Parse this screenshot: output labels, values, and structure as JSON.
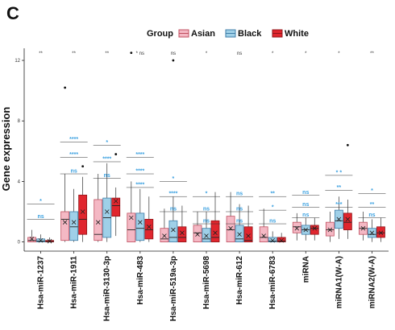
{
  "panel_label": "C",
  "chart_data": {
    "type": "box",
    "legend": {
      "title": "Group",
      "placement": "top",
      "entries": [
        {
          "name": "Asian",
          "color": "#f4b8c4",
          "edge": "#c05060"
        },
        {
          "name": "Black",
          "color": "#9fd0e8",
          "edge": "#3f7ea8"
        },
        {
          "name": "White",
          "color": "#e0262e",
          "edge": "#8f1418"
        }
      ]
    },
    "ylabel": "Gene expression",
    "xlabel": "",
    "ylim": [
      -0.5,
      12.8
    ],
    "yticks": [
      0,
      4,
      8,
      12
    ],
    "categories": [
      "Hsa-miR-1237",
      "Hsa-miR-1911",
      "Hsa-miR-3130-3p",
      "Hsa-miR-483",
      "Hsa-miR-519a-3p",
      "Hsa-miR-5698",
      "Hsa-miR-612",
      "Hsa-miR-6783",
      "miRNA",
      "miRNA1(W-A)",
      "miRNA2(W-A)"
    ],
    "top_significance": [
      "**",
      "**",
      "**",
      "* ns",
      "ns",
      "*",
      "ns",
      "*",
      "*",
      "*",
      "**"
    ],
    "series": [
      {
        "name": "Asian",
        "boxes": [
          {
            "q1": 0.0,
            "med": 0.1,
            "q3": 0.3,
            "lo": 0.0,
            "hi": 0.8,
            "mean": 0.2,
            "out": []
          },
          {
            "q1": 0.1,
            "med": 1.5,
            "q3": 2.0,
            "lo": 0.0,
            "hi": 4.5,
            "mean": 1.3,
            "out": [
              10.2
            ]
          },
          {
            "q1": 0.1,
            "med": 0.5,
            "q3": 2.8,
            "lo": 0.0,
            "hi": 4.5,
            "mean": 1.3,
            "out": []
          },
          {
            "q1": 0.0,
            "med": 0.8,
            "q3": 1.9,
            "lo": 0.0,
            "hi": 4.0,
            "mean": 1.6,
            "out": [
              12.5
            ]
          },
          {
            "q1": 0.0,
            "med": 0.2,
            "q3": 0.9,
            "lo": 0.0,
            "hi": 2.2,
            "mean": 0.4,
            "out": []
          },
          {
            "q1": 0.0,
            "med": 0.6,
            "q3": 1.1,
            "lo": 0.0,
            "hi": 2.0,
            "mean": 0.5,
            "out": []
          },
          {
            "q1": 0.0,
            "med": 0.8,
            "q3": 1.7,
            "lo": 0.0,
            "hi": 3.3,
            "mean": 0.9,
            "out": []
          },
          {
            "q1": 0.0,
            "med": 0.3,
            "q3": 1.0,
            "lo": 0.0,
            "hi": 2.2,
            "mean": 0.4,
            "out": []
          },
          {
            "q1": 0.6,
            "med": 1.0,
            "q3": 1.3,
            "lo": 0.1,
            "hi": 1.9,
            "mean": 0.9,
            "out": []
          },
          {
            "q1": 0.4,
            "med": 0.8,
            "q3": 1.3,
            "lo": 0.0,
            "hi": 2.0,
            "mean": 0.8,
            "out": []
          },
          {
            "q1": 0.5,
            "med": 0.9,
            "q3": 1.3,
            "lo": 0.1,
            "hi": 2.0,
            "mean": 0.9,
            "out": []
          }
        ]
      },
      {
        "name": "Black",
        "boxes": [
          {
            "q1": 0.0,
            "med": 0.05,
            "q3": 0.2,
            "lo": 0.0,
            "hi": 0.5,
            "mean": 0.1,
            "out": []
          },
          {
            "q1": 0.1,
            "med": 1.0,
            "q3": 2.0,
            "lo": 0.0,
            "hi": 3.5,
            "mean": 1.3,
            "out": []
          },
          {
            "q1": 0.3,
            "med": 1.6,
            "q3": 2.9,
            "lo": 0.0,
            "hi": 5.2,
            "mean": 2.0,
            "out": []
          },
          {
            "q1": 0.1,
            "med": 0.9,
            "q3": 1.9,
            "lo": 0.0,
            "hi": 3.5,
            "mean": 1.3,
            "out": []
          },
          {
            "q1": 0.0,
            "med": 0.3,
            "q3": 1.4,
            "lo": 0.0,
            "hi": 3.0,
            "mean": 0.8,
            "out": [
              12.0
            ]
          },
          {
            "q1": 0.0,
            "med": 0.2,
            "q3": 0.9,
            "lo": 0.0,
            "hi": 2.0,
            "mean": 0.4,
            "out": []
          },
          {
            "q1": 0.0,
            "med": 0.2,
            "q3": 1.1,
            "lo": 0.0,
            "hi": 2.5,
            "mean": 0.5,
            "out": []
          },
          {
            "q1": 0.0,
            "med": 0.05,
            "q3": 0.3,
            "lo": 0.0,
            "hi": 0.7,
            "mean": 0.1,
            "out": []
          },
          {
            "q1": 0.5,
            "med": 0.8,
            "q3": 1.1,
            "lo": 0.1,
            "hi": 1.6,
            "mean": 0.8,
            "out": []
          },
          {
            "q1": 0.9,
            "med": 1.4,
            "q3": 2.1,
            "lo": 0.2,
            "hi": 3.0,
            "mean": 1.5,
            "out": []
          },
          {
            "q1": 0.3,
            "med": 0.5,
            "q3": 0.9,
            "lo": 0.0,
            "hi": 1.5,
            "mean": 0.6,
            "out": []
          }
        ]
      },
      {
        "name": "White",
        "boxes": [
          {
            "q1": 0.0,
            "med": 0.03,
            "q3": 0.1,
            "lo": 0.0,
            "hi": 0.3,
            "mean": 0.05,
            "out": []
          },
          {
            "q1": 0.5,
            "med": 1.5,
            "q3": 3.1,
            "lo": 0.0,
            "hi": 4.3,
            "mean": 2.0,
            "out": [
              5.0
            ]
          },
          {
            "q1": 1.7,
            "med": 2.4,
            "q3": 2.9,
            "lo": 0.4,
            "hi": 3.6,
            "mean": 2.7,
            "out": [
              5.8
            ]
          },
          {
            "q1": 0.2,
            "med": 0.8,
            "q3": 1.5,
            "lo": 0.0,
            "hi": 3.0,
            "mean": 1.0,
            "out": []
          },
          {
            "q1": 0.0,
            "med": 0.3,
            "q3": 1.0,
            "lo": 0.0,
            "hi": 2.4,
            "mean": 0.6,
            "out": []
          },
          {
            "q1": 0.0,
            "med": 0.3,
            "q3": 1.4,
            "lo": 0.0,
            "hi": 3.3,
            "mean": 0.6,
            "out": []
          },
          {
            "q1": 0.0,
            "med": 0.1,
            "q3": 1.0,
            "lo": 0.0,
            "hi": 2.4,
            "mean": 0.4,
            "out": []
          },
          {
            "q1": 0.0,
            "med": 0.05,
            "q3": 0.3,
            "lo": 0.0,
            "hi": 0.6,
            "mean": 0.1,
            "out": []
          },
          {
            "q1": 0.5,
            "med": 0.9,
            "q3": 1.1,
            "lo": 0.1,
            "hi": 1.6,
            "mean": 0.9,
            "out": []
          },
          {
            "q1": 0.8,
            "med": 1.3,
            "q3": 1.9,
            "lo": 0.2,
            "hi": 2.8,
            "mean": 1.5,
            "out": [
              6.4
            ]
          },
          {
            "q1": 0.3,
            "med": 0.6,
            "q3": 1.0,
            "lo": 0.0,
            "hi": 1.6,
            "mean": 0.6,
            "out": []
          }
        ]
      }
    ],
    "pairwise_annotations": [
      {
        "category": 0,
        "lines": [
          {
            "y": 1.5,
            "label": "ns"
          },
          {
            "y": 2.5,
            "label": "*"
          }
        ]
      },
      {
        "category": 1,
        "lines": [
          {
            "y": 4.5,
            "label": "ns"
          },
          {
            "y": 5.6,
            "label": "****"
          },
          {
            "y": 6.6,
            "label": "****"
          }
        ]
      },
      {
        "category": 2,
        "lines": [
          {
            "y": 4.2,
            "label": "ns"
          },
          {
            "y": 5.3,
            "label": "****"
          },
          {
            "y": 6.4,
            "label": "*"
          }
        ]
      },
      {
        "category": 3,
        "lines": [
          {
            "y": 3.6,
            "label": "****"
          },
          {
            "y": 4.5,
            "label": "****"
          },
          {
            "y": 5.6,
            "label": "****"
          }
        ]
      },
      {
        "category": 4,
        "lines": [
          {
            "y": 2.0,
            "label": "ns"
          },
          {
            "y": 3.0,
            "label": "****"
          },
          {
            "y": 4.0,
            "label": "*"
          }
        ]
      },
      {
        "category": 5,
        "lines": [
          {
            "y": 1.2,
            "label": "ns"
          },
          {
            "y": 2.0,
            "label": "ns"
          },
          {
            "y": 3.0,
            "label": "*"
          }
        ]
      },
      {
        "category": 6,
        "lines": [
          {
            "y": 1.2,
            "label": "ns"
          },
          {
            "y": 2.0,
            "label": "ns"
          },
          {
            "y": 3.0,
            "label": "ns"
          }
        ]
      },
      {
        "category": 7,
        "lines": [
          {
            "y": 1.2,
            "label": "ns"
          },
          {
            "y": 2.1,
            "label": "*"
          },
          {
            "y": 3.0,
            "label": "**"
          }
        ]
      },
      {
        "category": 8,
        "lines": [
          {
            "y": 1.6,
            "label": "ns"
          },
          {
            "y": 2.3,
            "label": "ns"
          },
          {
            "y": 3.1,
            "label": "ns"
          }
        ]
      },
      {
        "category": 9,
        "lines": [
          {
            "y": 2.3,
            "label": "***"
          },
          {
            "y": 3.4,
            "label": "**"
          },
          {
            "y": 4.4,
            "label": "* *"
          }
        ]
      },
      {
        "category": 10,
        "lines": [
          {
            "y": 1.6,
            "label": "ns"
          },
          {
            "y": 2.3,
            "label": "**"
          },
          {
            "y": 3.2,
            "label": "*"
          }
        ]
      }
    ],
    "grid": false
  }
}
